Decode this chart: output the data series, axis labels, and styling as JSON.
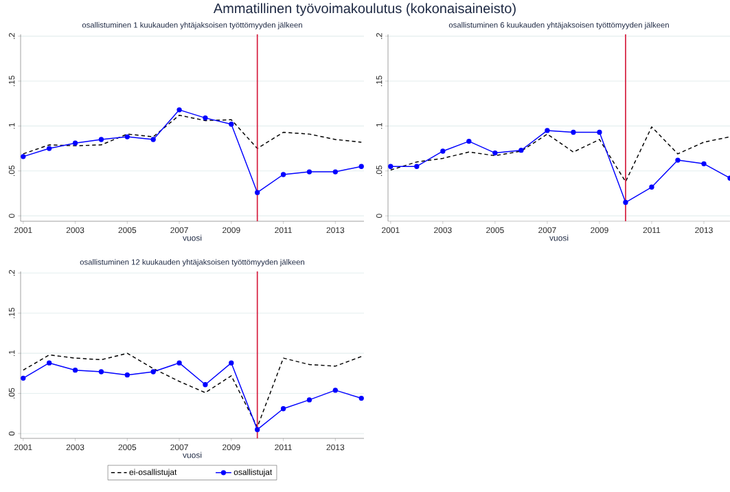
{
  "chart_data": [
    {
      "type": "line",
      "title": "osallistuminen 1 kuukauden yhtäjaksoisen työttömyyden jälkeen",
      "xlabel": "vuosi",
      "annotations": [
        "Ammatillinen työvoimakoulutus (kokonaisaineisto)"
      ],
      "x": [
        2001,
        2002,
        2003,
        2004,
        2005,
        2006,
        2007,
        2008,
        2009,
        2010,
        2011,
        2012,
        2013,
        2014
      ],
      "series": [
        {
          "color": "#000000",
          "line_style": "dashed",
          "marker": "none",
          "values": [
            0.069,
            0.079,
            0.078,
            0.079,
            0.091,
            0.088,
            0.112,
            0.106,
            0.107,
            0.075,
            0.093,
            0.091,
            0.085,
            0.082
          ]
        },
        {
          "color": "#0000ff",
          "line_style": "solid",
          "marker": "circle",
          "values": [
            0.066,
            0.075,
            0.081,
            0.085,
            0.088,
            0.085,
            0.118,
            0.109,
            0.102,
            0.026,
            0.046,
            0.049,
            0.049,
            0.055
          ]
        }
      ],
      "xlim": [
        2000.9,
        2014.1
      ],
      "xticks": [
        2001,
        2003,
        2005,
        2007,
        2009,
        2011,
        2013
      ],
      "ylim": [
        -0.006,
        0.202
      ],
      "yticks": [
        0,
        {
          "value": 0.05,
          "label": ".05"
        },
        {
          "value": 0.1,
          "label": ".1"
        },
        {
          "value": 0.15,
          "label": ".15"
        },
        {
          "value": 0.2,
          "label": ".2"
        }
      ],
      "grid": "y",
      "ref_lines": [
        {
          "axis": "x",
          "value": 2010,
          "color": "#d62040"
        }
      ]
    },
    {
      "type": "line",
      "title": "osallistuminen 6 kuukauden yhtäjaksoisen työttömyyden jälkeen",
      "xlabel": "vuosi",
      "x": [
        2001,
        2002,
        2003,
        2004,
        2005,
        2006,
        2007,
        2008,
        2009,
        2010,
        2011,
        2012,
        2013,
        2014
      ],
      "series": [
        {
          "color": "#000000",
          "line_style": "dashed",
          "marker": "none",
          "values": [
            0.051,
            0.06,
            0.064,
            0.071,
            0.067,
            0.072,
            0.091,
            0.071,
            0.085,
            0.038,
            0.099,
            0.069,
            0.082,
            0.088
          ]
        },
        {
          "color": "#0000ff",
          "line_style": "solid",
          "marker": "circle",
          "values": [
            0.055,
            0.055,
            0.072,
            0.083,
            0.07,
            0.073,
            0.095,
            0.093,
            0.093,
            0.015,
            0.032,
            0.062,
            0.058,
            0.042
          ]
        }
      ],
      "xlim": [
        2000.9,
        2014
      ],
      "xticks": [
        2001,
        2003,
        2005,
        2007,
        2009,
        2011,
        2013
      ],
      "ylim": [
        -0.006,
        0.202
      ],
      "yticks": [
        0,
        {
          "value": 0.05,
          "label": ".05"
        },
        {
          "value": 0.1,
          "label": ".1"
        },
        {
          "value": 0.15,
          "label": ".15"
        },
        {
          "value": 0.2,
          "label": ".2"
        }
      ],
      "grid": "y",
      "ref_lines": [
        {
          "axis": "x",
          "value": 2010,
          "color": "#d62040"
        }
      ]
    },
    {
      "type": "line",
      "title": "osallistuminen 12 kuukauden yhtäjaksoisen työttömyyden jälkeen",
      "xlabel": "vuosi",
      "x": [
        2001,
        2002,
        2003,
        2004,
        2005,
        2006,
        2007,
        2008,
        2009,
        2010,
        2011,
        2012,
        2013,
        2014
      ],
      "series": [
        {
          "name": "ei-osallistujat",
          "color": "#000000",
          "line_style": "dashed",
          "marker": "none",
          "values": [
            0.079,
            0.098,
            0.094,
            0.092,
            0.1,
            0.081,
            0.065,
            0.051,
            0.072,
            0.008,
            0.094,
            0.086,
            0.084,
            0.096
          ]
        },
        {
          "name": "osallistujat",
          "color": "#0000ff",
          "line_style": "solid",
          "marker": "circle",
          "values": [
            0.069,
            0.088,
            0.079,
            0.077,
            0.073,
            0.077,
            0.088,
            0.061,
            0.088,
            0.005,
            0.031,
            0.042,
            0.054,
            0.044
          ]
        }
      ],
      "xlim": [
        2000.9,
        2014.1
      ],
      "xticks": [
        2001,
        2003,
        2005,
        2007,
        2009,
        2011,
        2013
      ],
      "ylim": [
        -0.006,
        0.202
      ],
      "yticks": [
        0,
        {
          "value": 0.05,
          "label": ".05"
        },
        {
          "value": 0.1,
          "label": ".1"
        },
        {
          "value": 0.15,
          "label": ".15"
        },
        {
          "value": 0.2,
          "label": ".2"
        }
      ],
      "grid": "y",
      "legend": "bottom",
      "ref_lines": [
        {
          "axis": "x",
          "value": 2010,
          "color": "#d62040"
        }
      ]
    }
  ]
}
